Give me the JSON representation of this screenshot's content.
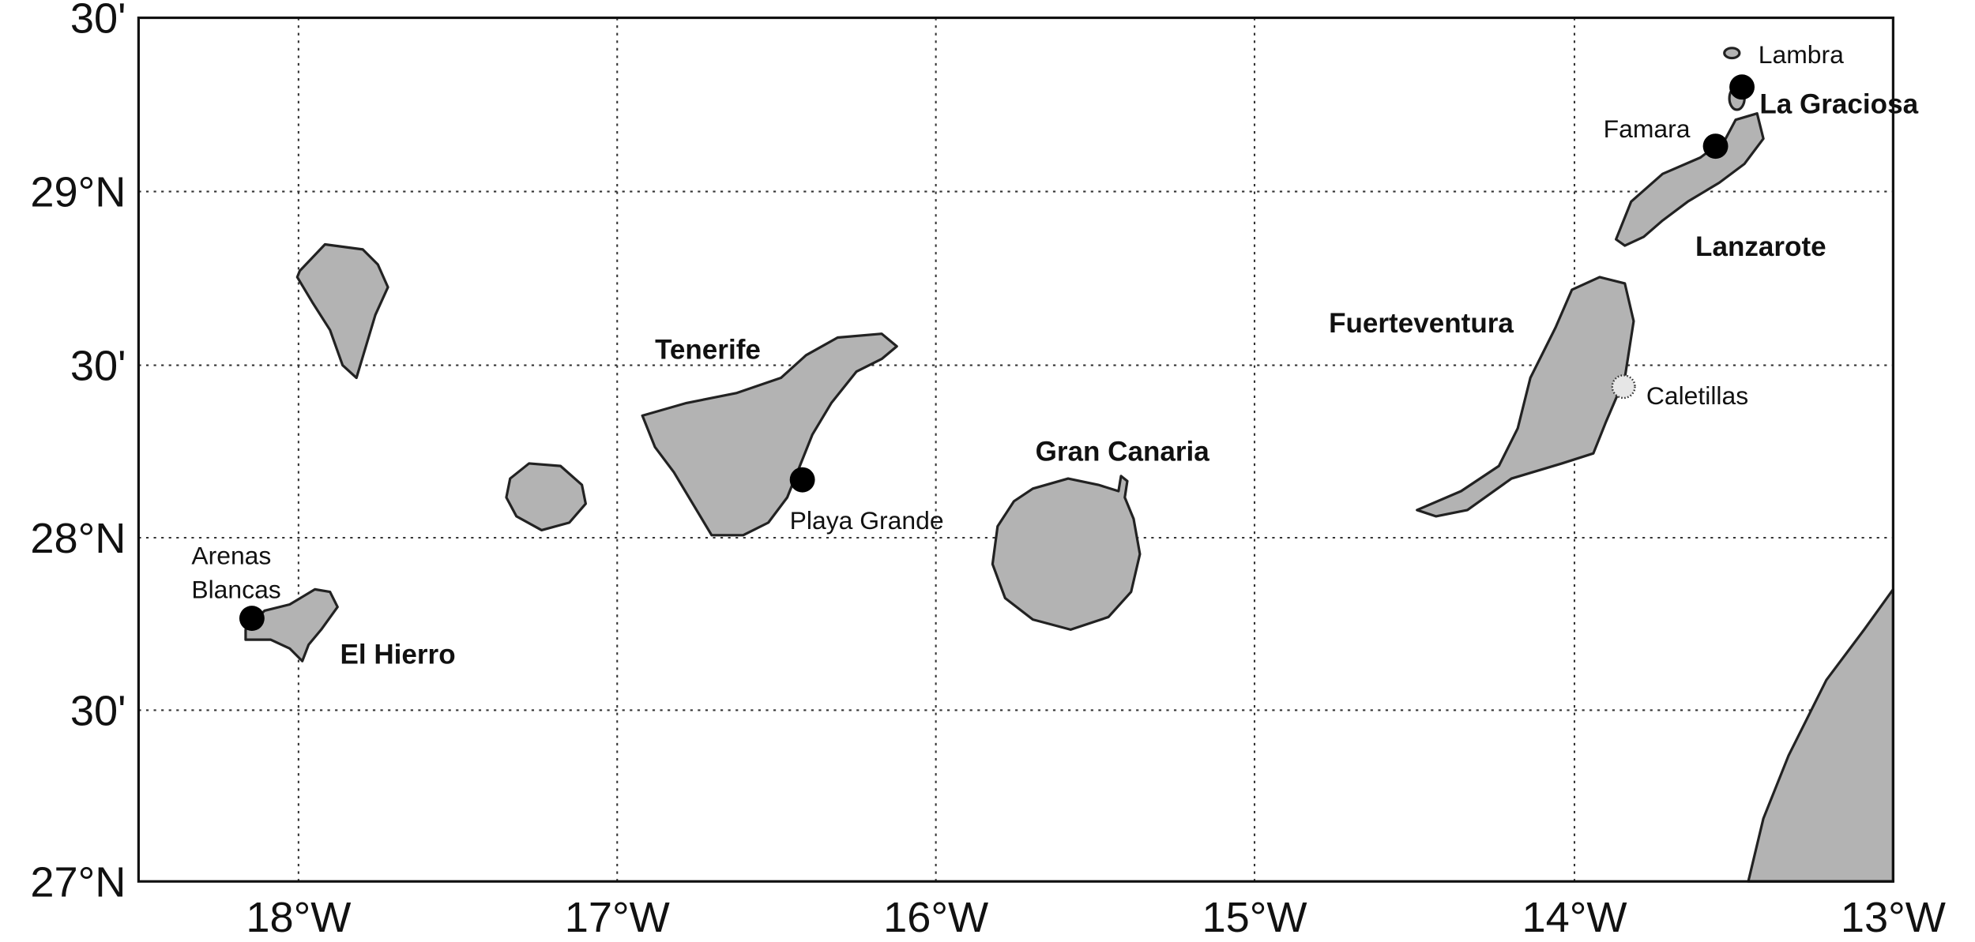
{
  "map": {
    "y_axis_labels": [
      "30'",
      "29°N",
      "30'",
      "28°N",
      "30'",
      "27°N"
    ],
    "x_axis_labels": [
      "18°W",
      "17°W",
      "16°W",
      "15°W",
      "14°W",
      "13°W"
    ],
    "sites": {
      "lambra": "Lambra",
      "famara": "Famara",
      "caletillas": "Caletillas",
      "playa_grande": "Playa Grande",
      "arenas_blancas": [
        "Arenas",
        "Blancas"
      ]
    },
    "islands": {
      "la_graciosa": "La Graciosa",
      "lanzarote": "Lanzarote",
      "fuerteventura": "Fuerteventura",
      "tenerife": "Tenerife",
      "gran_canaria": "Gran Canaria",
      "el_hierro": "El Hierro"
    }
  }
}
